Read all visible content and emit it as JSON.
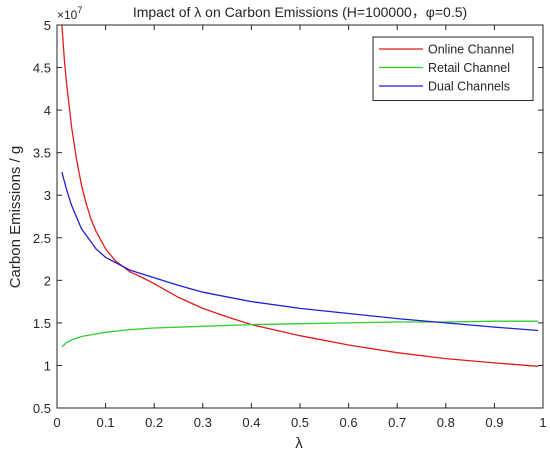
{
  "chart_data": {
    "type": "line",
    "title": "Impact of λ on Carbon Emissions (H=100000，φ=0.5)",
    "xlabel": "λ",
    "ylabel": "Carbon Emissions / g",
    "y_exponent_label": "×10",
    "y_exponent_power": "7",
    "xlim": [
      0,
      1
    ],
    "ylim": [
      0.5,
      5
    ],
    "x_ticks": [
      "0",
      "0.1",
      "0.2",
      "0.3",
      "0.4",
      "0.5",
      "0.6",
      "0.7",
      "0.8",
      "0.9",
      "1"
    ],
    "x_tick_values": [
      0,
      0.1,
      0.2,
      0.3,
      0.4,
      0.5,
      0.6,
      0.7,
      0.8,
      0.9,
      1
    ],
    "y_ticks": [
      "0.5",
      "1",
      "1.5",
      "2",
      "2.5",
      "3",
      "3.5",
      "4",
      "4.5",
      "5"
    ],
    "y_tick_values": [
      0.5,
      1,
      1.5,
      2,
      2.5,
      3,
      3.5,
      4,
      4.5,
      5
    ],
    "grid": false,
    "legend_position": "top-right",
    "series": [
      {
        "name": "Online Channel",
        "color": "#e41a1c",
        "x": [
          0.01,
          0.015,
          0.02,
          0.03,
          0.04,
          0.05,
          0.06,
          0.07,
          0.08,
          0.1,
          0.12,
          0.15,
          0.18,
          0.2,
          0.25,
          0.3,
          0.35,
          0.4,
          0.5,
          0.6,
          0.7,
          0.8,
          0.9,
          0.99
        ],
        "y": [
          5.0,
          4.6,
          4.3,
          3.8,
          3.43,
          3.13,
          2.9,
          2.72,
          2.58,
          2.37,
          2.23,
          2.1,
          2.02,
          1.96,
          1.8,
          1.67,
          1.57,
          1.48,
          1.35,
          1.24,
          1.15,
          1.08,
          1.03,
          0.99
        ]
      },
      {
        "name": "Retail Channel",
        "color": "#33cc33",
        "x": [
          0.01,
          0.02,
          0.03,
          0.05,
          0.08,
          0.1,
          0.15,
          0.2,
          0.3,
          0.4,
          0.5,
          0.6,
          0.7,
          0.8,
          0.9,
          0.99
        ],
        "y": [
          1.22,
          1.27,
          1.3,
          1.34,
          1.37,
          1.39,
          1.42,
          1.44,
          1.46,
          1.48,
          1.49,
          1.5,
          1.51,
          1.51,
          1.52,
          1.52
        ]
      },
      {
        "name": "Dual Channels",
        "color": "#1f1fd1",
        "x": [
          0.01,
          0.02,
          0.03,
          0.05,
          0.08,
          0.1,
          0.15,
          0.2,
          0.25,
          0.3,
          0.4,
          0.5,
          0.6,
          0.7,
          0.8,
          0.9,
          0.99
        ],
        "y": [
          3.27,
          3.06,
          2.88,
          2.61,
          2.37,
          2.27,
          2.12,
          2.03,
          1.94,
          1.86,
          1.75,
          1.67,
          1.61,
          1.55,
          1.5,
          1.45,
          1.41
        ]
      }
    ]
  }
}
